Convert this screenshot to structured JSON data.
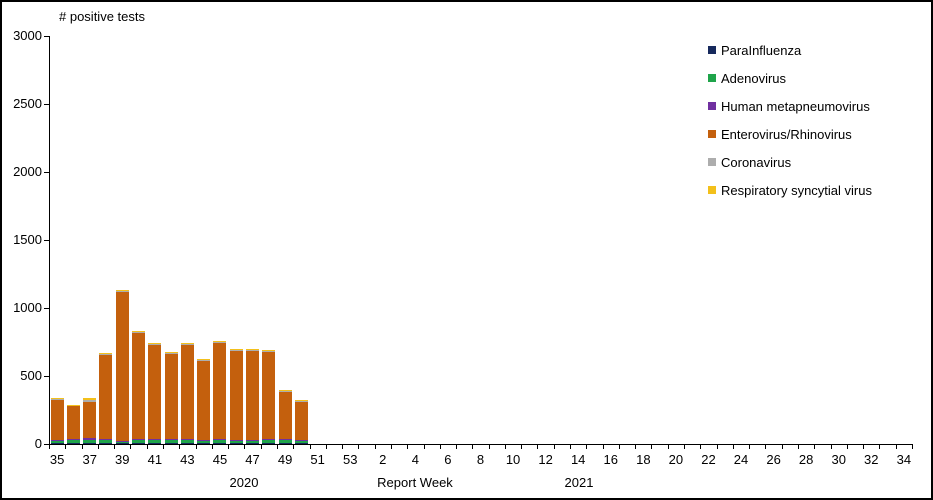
{
  "window": {
    "background": "#FFFFFF",
    "border_color": "#000000"
  },
  "chart_data": {
    "type": "bar",
    "stacked": true,
    "title": "# positive tests",
    "xlabel": "Report Week",
    "ylabel": "# positive tests",
    "ylim": [
      0,
      3000
    ],
    "ytick_step": 500,
    "ytick_labels": [
      "3000",
      "2500",
      "2000",
      "1500",
      "1000",
      "500",
      "0"
    ],
    "xtick_labels": [
      "35",
      "37",
      "39",
      "41",
      "43",
      "45",
      "47",
      "49",
      "51",
      "53",
      "2",
      "4",
      "6",
      "8",
      "10",
      "12",
      "14",
      "16",
      "18",
      "20",
      "22",
      "24",
      "26",
      "28",
      "30",
      "32",
      "34"
    ],
    "x_groups": [
      {
        "year": "2020",
        "weeks": "35-53"
      },
      {
        "year": "2021",
        "weeks": "1-34"
      }
    ],
    "grid": "off",
    "legend_position": "right",
    "bar_weeks": [
      35,
      36,
      37,
      38,
      39,
      40,
      41,
      42,
      43,
      44,
      45,
      46,
      47,
      48,
      49,
      50
    ],
    "series": [
      {
        "name": "ParaInfluenza",
        "color": "#16295C",
        "values": [
          8,
          10,
          8,
          5,
          5,
          5,
          8,
          5,
          5,
          5,
          8,
          8,
          5,
          5,
          5,
          4
        ]
      },
      {
        "name": "Adenovirus",
        "color": "#1FA44A",
        "values": [
          22,
          20,
          25,
          30,
          13,
          25,
          20,
          25,
          25,
          22,
          18,
          18,
          22,
          25,
          25,
          22
        ]
      },
      {
        "name": "Human metapneumovirus",
        "color": "#7030A0",
        "values": [
          3,
          5,
          8,
          4,
          5,
          5,
          8,
          5,
          6,
          5,
          8,
          6,
          5,
          4,
          5,
          4
        ]
      },
      {
        "name": "Enterovirus/Rhinovirus",
        "color": "#C4600D",
        "values": [
          297,
          245,
          270,
          619,
          1094,
          784,
          697,
          630,
          697,
          582,
          710,
          655,
          655,
          645,
          350,
          282
        ]
      },
      {
        "name": "Coronavirus",
        "color": "#ADADAD",
        "values": [
          3,
          4,
          15,
          4,
          5,
          4,
          5,
          4,
          5,
          4,
          4,
          5,
          5,
          4,
          4,
          3
        ]
      },
      {
        "name": "Respiratory syncytial virus",
        "color": "#F3C01B",
        "values": [
          7,
          6,
          9,
          8,
          8,
          7,
          7,
          6,
          7,
          7,
          7,
          8,
          8,
          7,
          6,
          5
        ]
      }
    ],
    "totals": [
      340,
      290,
      335,
      670,
      1130,
      830,
      745,
      675,
      745,
      625,
      755,
      700,
      700,
      690,
      395,
      320
    ]
  }
}
